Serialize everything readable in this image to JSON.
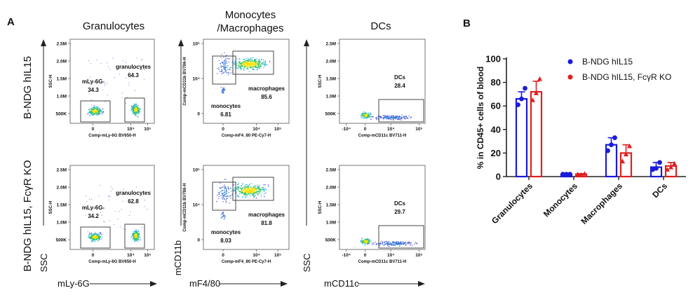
{
  "panel_a": {
    "label": "A",
    "columns": [
      "Granulocytes",
      "Monocytes\n/Macrophages",
      "DCs"
    ],
    "rows": [
      "B-NDG hIL15",
      "B-NDG hIL15, FcγR KO"
    ],
    "axis_titles": {
      "ssc": "SSC",
      "cd11b": "mCD11b",
      "ly6g": "mLy-6G",
      "f480": "mF4/80",
      "cd11c": "mCD11c"
    },
    "plot_axes": {
      "gran_x": "Comp-mLy-6G BV650-H",
      "gran_y": "SSC-H",
      "mono_x": "Comp-mF4_80 PE-Cy7-H",
      "mono_y": "Comp-mCD11b BV786-H",
      "dc_x": "Comp-mCD11c BV711-H",
      "dc_y": "SSC-H"
    },
    "ticks": {
      "ssc": [
        "2.5M",
        "2.0M",
        "1.5M",
        "1.0M",
        "500K"
      ],
      "gran_x": [
        "0",
        "10⁴",
        "10⁵"
      ],
      "mono_y": [
        "10⁵",
        "10⁴",
        "0"
      ],
      "mono_x": [
        "0",
        "10⁴",
        "10⁵"
      ],
      "dc_x": [
        "-10⁴",
        "0",
        "10⁴",
        "10⁵"
      ]
    },
    "gates": {
      "row1": {
        "ly6g_neg": {
          "name": "mLy-6G-",
          "value": "34.3"
        },
        "granulocytes": {
          "name": "granulocytes",
          "value": "64.3"
        },
        "macrophages": {
          "name": "macrophages",
          "value": "85.6"
        },
        "monocytes": {
          "name": "monocytes",
          "value": "6.81"
        },
        "dcs": {
          "name": "DCs",
          "value": "28.4"
        }
      },
      "row2": {
        "ly6g_neg": {
          "name": "mLy-6G-",
          "value": "34.2"
        },
        "granulocytes": {
          "name": "granulocytes",
          "value": "62.8"
        },
        "macrophages": {
          "name": "macrophages",
          "value": "81.8"
        },
        "monocytes": {
          "name": "monocytes",
          "value": "8.03"
        },
        "dcs": {
          "name": "DCs",
          "value": "29.7"
        }
      }
    }
  },
  "chart_data": {
    "type": "bar",
    "panel_label": "B",
    "categories": [
      "Granulocytes",
      "Monocytes",
      "Macrophages",
      "DCs"
    ],
    "ylabel": "% in CD45+ cells of blood",
    "ylim": [
      0,
      100
    ],
    "yticks": [
      0,
      20,
      40,
      60,
      80,
      100
    ],
    "legend_position": "top-right",
    "error_bars": true,
    "series": [
      {
        "name": "B-NDG hIL15",
        "color": "#1a1adb",
        "values": [
          66,
          2,
          27,
          8
        ],
        "errors": [
          6,
          0.5,
          6,
          4
        ],
        "points": [
          [
            61,
            66,
            75
          ],
          [
            2,
            2,
            2
          ],
          [
            22,
            27,
            33
          ],
          [
            6,
            7,
            12
          ]
        ]
      },
      {
        "name": "B-NDG hIL15, FcγR KO",
        "color": "#e02020",
        "values": [
          72,
          2,
          20,
          9
        ],
        "errors": [
          9,
          0.5,
          7,
          3
        ],
        "points": [
          [
            65,
            71,
            83
          ],
          [
            2,
            1.5,
            2.5
          ],
          [
            13,
            19,
            26
          ],
          [
            6,
            8,
            11
          ]
        ]
      }
    ]
  }
}
